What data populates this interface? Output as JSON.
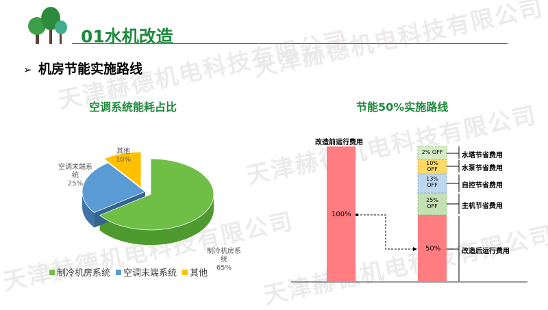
{
  "header": {
    "title": "01水机改造",
    "logo": "tree-icon"
  },
  "section": {
    "marker": "➢",
    "title": "机房节能实施路线"
  },
  "watermark": "天津赫德机电科技有限公司",
  "charts": {
    "left_title": "空调系统能耗占比",
    "right_title": "节能50%实施路线"
  },
  "pie_labels": {
    "other": [
      "其他",
      "10%"
    ],
    "terminal": [
      "空调末端系",
      "统",
      "25%"
    ],
    "cooling": [
      "制冷机房系",
      "统",
      "65%"
    ]
  },
  "legend": [
    "制冷机房系统",
    "空调末端系统",
    "其他"
  ],
  "bar_labels": {
    "before_label": "改造前运行费用",
    "before_value": "100%",
    "after_value": "50%",
    "after_label": "改造后运行费用",
    "segments": [
      {
        "value_text": "2% OFF",
        "annotation": "水塔节省费用"
      },
      {
        "value_text": "10%\nOFF",
        "annotation": "水泵节省费用"
      },
      {
        "value_text": "13%\nOFF",
        "annotation": "自控节省费用"
      },
      {
        "value_text": "25%\nOFF",
        "annotation": "主机节省费用"
      }
    ]
  },
  "colors": {
    "green": "#6fbf46",
    "blue": "#5b9bd5",
    "yellow": "#ffc000",
    "red": "#ff7c80",
    "light_green": "#c5e0b4",
    "light_yellow": "#ffd966",
    "light_blue": "#bdd7ee",
    "title_green": "#1e8a3c"
  },
  "chart_data": [
    {
      "type": "pie",
      "title": "空调系统能耗占比",
      "categories": [
        "制冷机房系统",
        "空调末端系统",
        "其他"
      ],
      "values": [
        65,
        25,
        10
      ]
    },
    {
      "type": "bar",
      "title": "节能50%实施路线",
      "categories": [
        "改造前运行费用",
        "改造后运行费用"
      ],
      "series": [
        {
          "name": "改造后运行费用",
          "values": [
            100,
            50
          ]
        },
        {
          "name": "主机节省费用",
          "values": [
            0,
            25
          ]
        },
        {
          "name": "自控节省费用",
          "values": [
            0,
            13
          ]
        },
        {
          "name": "水泵节省费用",
          "values": [
            0,
            10
          ]
        },
        {
          "name": "水塔节省费用",
          "values": [
            0,
            2
          ]
        }
      ],
      "ylim": [
        0,
        100
      ]
    }
  ]
}
